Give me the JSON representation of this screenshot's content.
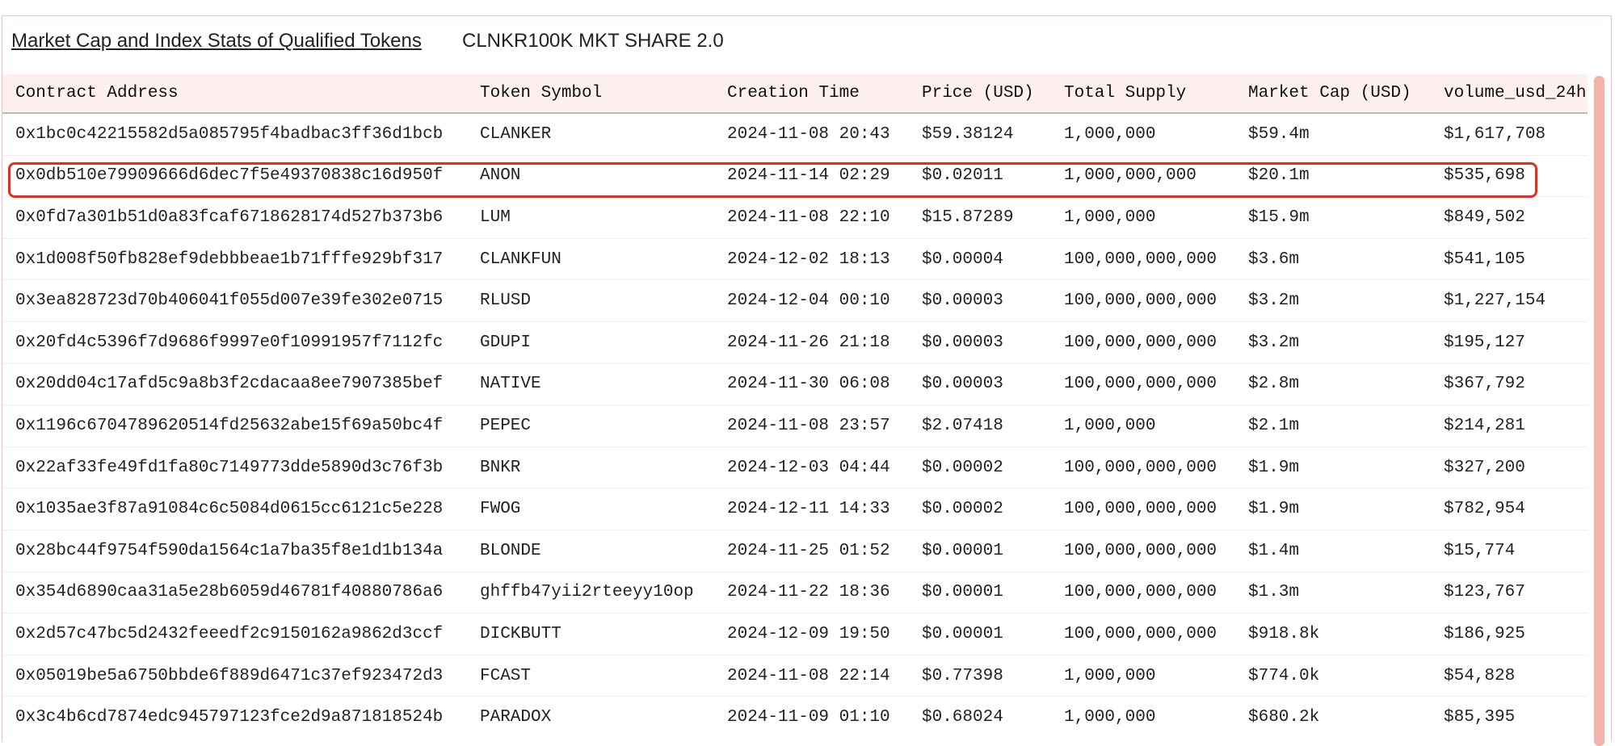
{
  "header": {
    "title": "Market Cap and Index Stats of Qualified Tokens",
    "subtitle": "CLNKR100K MKT SHARE 2.0"
  },
  "table": {
    "columns": [
      "Contract Address",
      "Token Symbol",
      "Creation Time",
      "Price (USD)",
      "Total Supply",
      "Market Cap (USD)",
      "volume_usd_24h"
    ],
    "rows": [
      [
        "0x1bc0c42215582d5a085795f4badbac3ff36d1bcb",
        "CLANKER",
        "2024-11-08 20:43",
        "$59.38124",
        "1,000,000",
        "$59.4m",
        "$1,617,708"
      ],
      [
        "0x0db510e79909666d6dec7f5e49370838c16d950f",
        "ANON",
        "2024-11-14 02:29",
        "$0.02011",
        "1,000,000,000",
        "$20.1m",
        "$535,698"
      ],
      [
        "0x0fd7a301b51d0a83fcaf6718628174d527b373b6",
        "LUM",
        "2024-11-08 22:10",
        "$15.87289",
        "1,000,000",
        "$15.9m",
        "$849,502"
      ],
      [
        "0x1d008f50fb828ef9debbbeae1b71fffe929bf317",
        "CLANKFUN",
        "2024-12-02 18:13",
        "$0.00004",
        "100,000,000,000",
        "$3.6m",
        "$541,105"
      ],
      [
        "0x3ea828723d70b406041f055d007e39fe302e0715",
        "RLUSD",
        "2024-12-04 00:10",
        "$0.00003",
        "100,000,000,000",
        "$3.2m",
        "$1,227,154"
      ],
      [
        "0x20fd4c5396f7d9686f9997e0f10991957f7112fc",
        "GDUPI",
        "2024-11-26 21:18",
        "$0.00003",
        "100,000,000,000",
        "$3.2m",
        "$195,127"
      ],
      [
        "0x20dd04c17afd5c9a8b3f2cdacaa8ee7907385bef",
        "NATIVE",
        "2024-11-30 06:08",
        "$0.00003",
        "100,000,000,000",
        "$2.8m",
        "$367,792"
      ],
      [
        "0x1196c6704789620514fd25632abe15f69a50bc4f",
        "PEPEC",
        "2024-11-08 23:57",
        "$2.07418",
        "1,000,000",
        "$2.1m",
        "$214,281"
      ],
      [
        "0x22af33fe49fd1fa80c7149773dde5890d3c76f3b",
        "BNKR",
        "2024-12-03 04:44",
        "$0.00002",
        "100,000,000,000",
        "$1.9m",
        "$327,200"
      ],
      [
        "0x1035ae3f87a91084c6c5084d0615cc6121c5e228",
        "FWOG",
        "2024-12-11 14:33",
        "$0.00002",
        "100,000,000,000",
        "$1.9m",
        "$782,954"
      ],
      [
        "0x28bc44f9754f590da1564c1a7ba35f8e1d1b134a",
        "BLONDE",
        "2024-11-25 01:52",
        "$0.00001",
        "100,000,000,000",
        "$1.4m",
        "$15,774"
      ],
      [
        "0x354d6890caa31a5e28b6059d46781f40880786a6",
        "ghffb47yii2rteeyy10op",
        "2024-11-22 18:36",
        "$0.00001",
        "100,000,000,000",
        "$1.3m",
        "$123,767"
      ],
      [
        "0x2d57c47bc5d2432feeedf2c9150162a9862d3ccf",
        "DICKBUTT",
        "2024-12-09 19:50",
        "$0.00001",
        "100,000,000,000",
        "$918.8k",
        "$186,925"
      ],
      [
        "0x05019be5a6750bbde6f889d6471c37ef923472d3",
        "FCAST",
        "2024-11-08 22:14",
        "$0.77398",
        "1,000,000",
        "$774.0k",
        "$54,828"
      ],
      [
        "0x3c4b6cd7874edc945797123fce2d9a871818524b",
        "PARADOX",
        "2024-11-09 01:10",
        "$0.68024",
        "1,000,000",
        "$680.2k",
        "$85,395"
      ]
    ]
  }
}
